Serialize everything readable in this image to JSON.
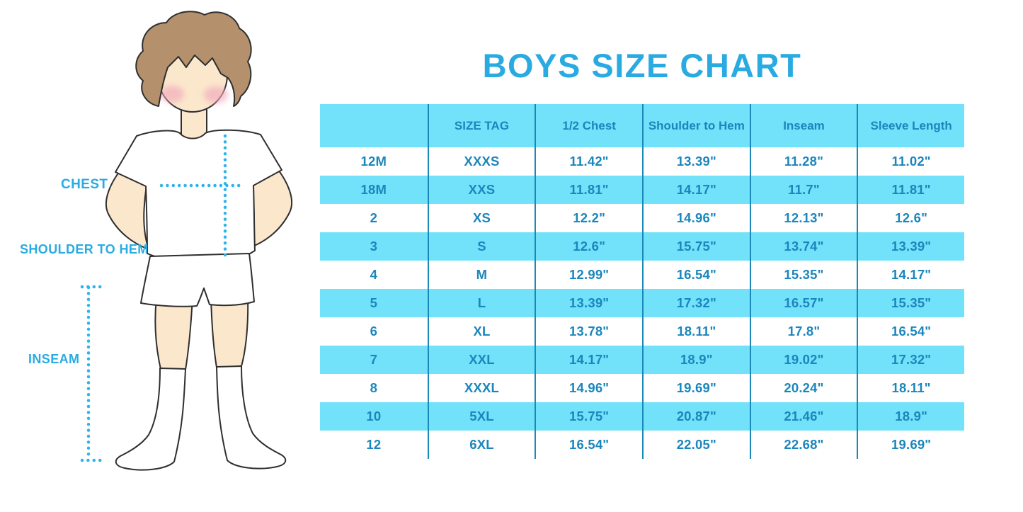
{
  "title": "BOYS SIZE CHART",
  "figure": {
    "description": "cartoon-boy-with-measurement-guides",
    "labels": {
      "chest": "CHEST",
      "shoulder_to_hem": "SHOULDER TO HEM",
      "inseam": "INSEAM"
    }
  },
  "colors": {
    "accent_blue": "#29ABE2",
    "table_text_blue": "#1B86BC",
    "row_cyan": "#72E1FA",
    "divider_blue": "#1A88B8",
    "dotted_guide_blue": "#2CB4EC",
    "skin": "#FBE7CC",
    "hair_brown": "#B4916C",
    "blush_pink": "#F2A9BC",
    "outline_dark": "#2F2F2F"
  },
  "chart_data": {
    "type": "table",
    "title": "BOYS SIZE CHART",
    "columns": [
      "",
      "SIZE TAG",
      "1/2 Chest",
      "Shoulder to Hem",
      "Inseam",
      "Sleeve Length"
    ],
    "rows": [
      [
        "12M",
        "XXXS",
        "11.42\"",
        "13.39\"",
        "11.28\"",
        "11.02\""
      ],
      [
        "18M",
        "XXS",
        "11.81\"",
        "14.17\"",
        "11.7\"",
        "11.81\""
      ],
      [
        "2",
        "XS",
        "12.2\"",
        "14.96\"",
        "12.13\"",
        "12.6\""
      ],
      [
        "3",
        "S",
        "12.6\"",
        "15.75\"",
        "13.74\"",
        "13.39\""
      ],
      [
        "4",
        "M",
        "12.99\"",
        "16.54\"",
        "15.35\"",
        "14.17\""
      ],
      [
        "5",
        "L",
        "13.39\"",
        "17.32\"",
        "16.57\"",
        "15.35\""
      ],
      [
        "6",
        "XL",
        "13.78\"",
        "18.11\"",
        "17.8\"",
        "16.54\""
      ],
      [
        "7",
        "XXL",
        "14.17\"",
        "18.9\"",
        "19.02\"",
        "17.32\""
      ],
      [
        "8",
        "XXXL",
        "14.96\"",
        "19.69\"",
        "20.24\"",
        "18.11\""
      ],
      [
        "10",
        "5XL",
        "15.75\"",
        "20.87\"",
        "21.46\"",
        "18.9\""
      ],
      [
        "12",
        "6XL",
        "16.54\"",
        "22.05\"",
        "22.68\"",
        "19.69\""
      ]
    ]
  }
}
